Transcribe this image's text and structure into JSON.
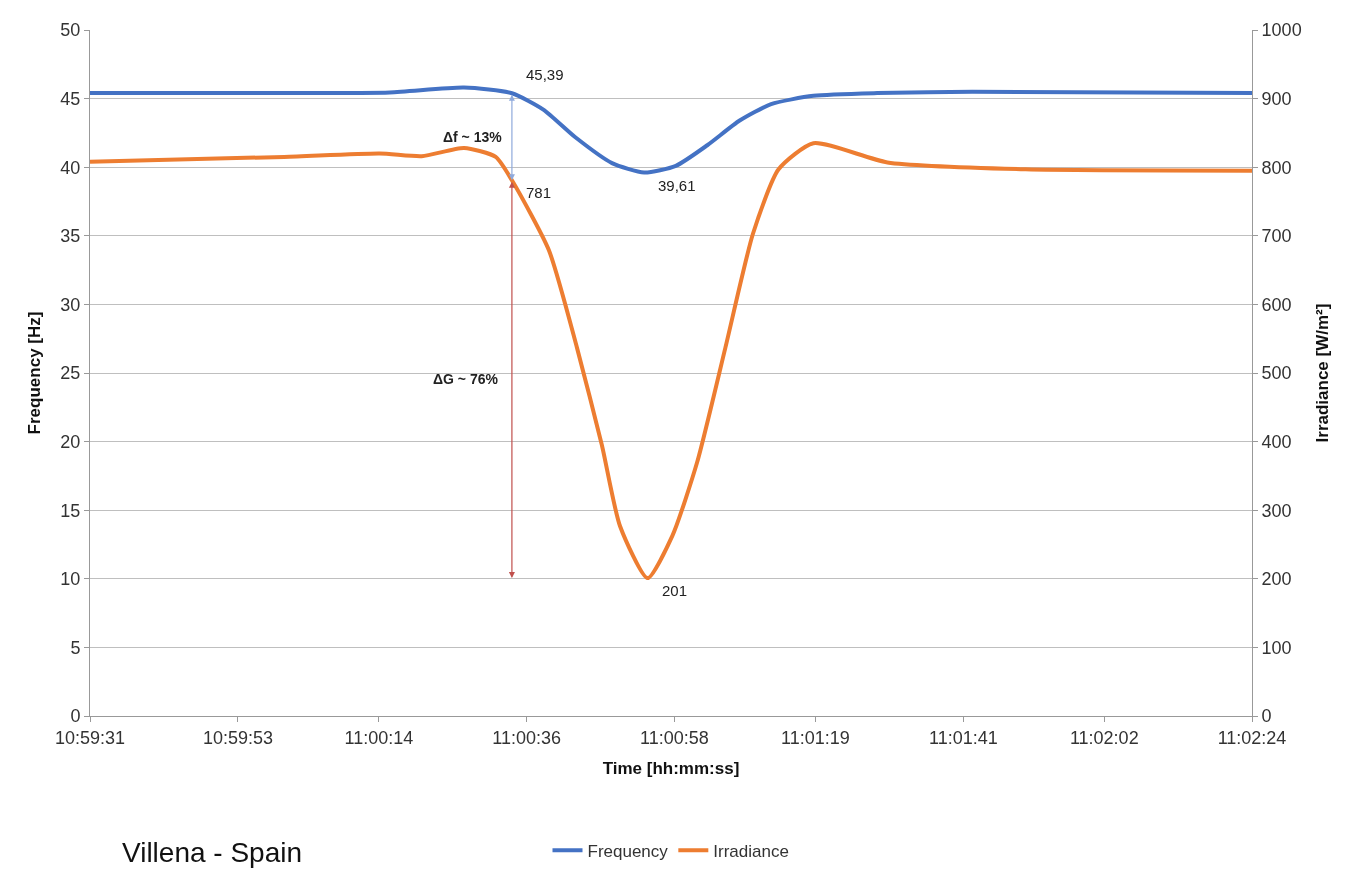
{
  "chart_data": {
    "type": "line",
    "xlabel": "Time [hh:mm:ss]",
    "ylabel": "Frequency [Hz]",
    "y2label": "Irradiance [W/m²]",
    "xlim": [
      10.99194,
      11.04
    ],
    "xticks": [
      {
        "value": 10.99194,
        "label": "10:59:31"
      },
      {
        "value": 10.99806,
        "label": "10:59:53"
      },
      {
        "value": 11.00389,
        "label": "11:00:14"
      },
      {
        "value": 11.01,
        "label": "11:00:36"
      },
      {
        "value": 11.01611,
        "label": "11:00:58"
      },
      {
        "value": 11.02194,
        "label": "11:01:19"
      },
      {
        "value": 11.02806,
        "label": "11:01:41"
      },
      {
        "value": 11.03389,
        "label": "11:02:02"
      },
      {
        "value": 11.04,
        "label": "11:02:24"
      }
    ],
    "ylim": [
      0,
      50
    ],
    "yticks": [
      0,
      5,
      10,
      15,
      20,
      25,
      30,
      35,
      40,
      45,
      50
    ],
    "y2lim": [
      0,
      1000
    ],
    "y2ticks": [
      0,
      100,
      200,
      300,
      400,
      500,
      600,
      700,
      800,
      900,
      1000
    ],
    "grid": "y",
    "legend": "bottom",
    "line_style": "solid",
    "series": [
      {
        "name": "Frequency",
        "color": "#4472c4",
        "x": [
          10.99194,
          10.99997,
          11.00434,
          11.00741,
          11.00939,
          11.01069,
          11.012,
          11.01353,
          11.01486,
          11.01617,
          11.01747,
          11.01881,
          11.02011,
          11.02186,
          11.0245,
          11.02844,
          11.04
        ],
        "values": [
          45.4,
          45.4,
          45.45,
          45.8,
          45.39,
          44.2,
          42.2,
          40.3,
          39.61,
          40.1,
          41.6,
          43.4,
          44.6,
          45.2,
          45.4,
          45.5,
          45.4
        ],
        "value_labels": [
          null,
          null,
          null,
          null,
          "45,39",
          null,
          null,
          null,
          "39,61",
          null,
          null,
          null,
          null,
          null,
          null,
          null,
          null
        ]
      },
      {
        "name": "Irradiance",
        "color": "#ed7d31",
        "axis": "y2",
        "x": [
          10.99194,
          10.99997,
          11.00392,
          11.00566,
          11.00741,
          11.00872,
          11.00939,
          11.01092,
          11.01208,
          11.01311,
          11.01386,
          11.015,
          11.01603,
          11.01706,
          11.01822,
          11.01936,
          11.02042,
          11.02186,
          11.02492,
          11.03064,
          11.04
        ],
        "values": [
          808,
          815,
          820,
          816,
          828,
          815,
          781,
          679,
          537,
          395,
          277,
          201,
          263,
          371,
          537,
          703,
          797,
          835,
          807,
          797,
          795
        ],
        "value_labels": [
          null,
          null,
          null,
          null,
          null,
          null,
          "781",
          null,
          null,
          null,
          null,
          "201",
          null,
          null,
          null,
          null,
          null,
          null,
          null,
          null,
          null
        ]
      }
    ],
    "annotations": [
      "Δf ~ 13%",
      "ΔG ~ 76%",
      "Villena - Spain"
    ]
  }
}
